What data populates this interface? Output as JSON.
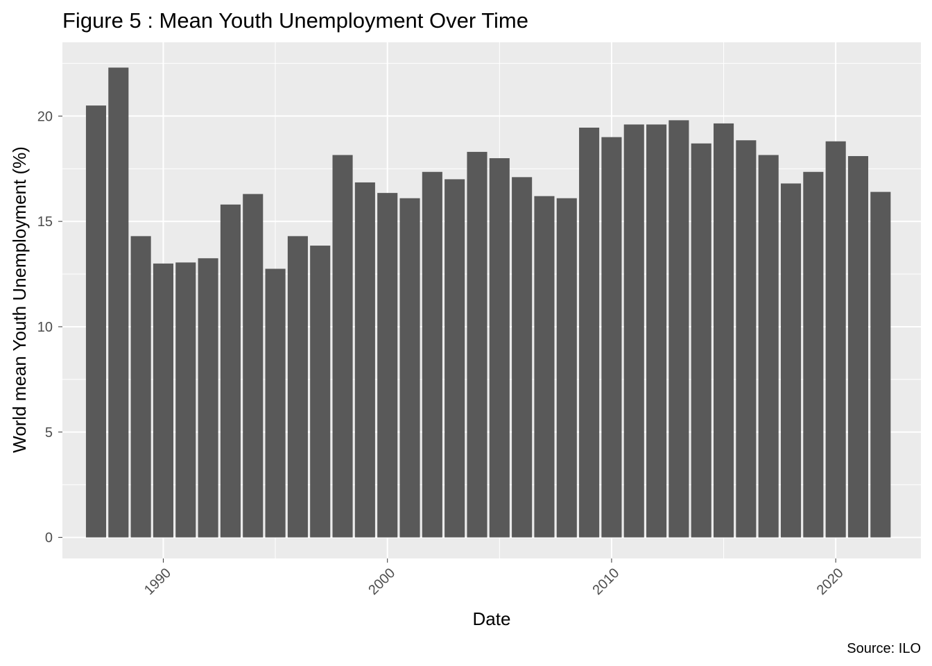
{
  "chart_data": {
    "type": "bar",
    "title": "Figure 5 : Mean Youth Unemployment Over Time",
    "xlabel": "Date",
    "ylabel": "World mean Youth Unemployment (%)",
    "caption": "Source: ILO",
    "x": [
      1987,
      1988,
      1989,
      1990,
      1991,
      1992,
      1993,
      1994,
      1995,
      1996,
      1997,
      1998,
      1999,
      2000,
      2001,
      2002,
      2003,
      2004,
      2005,
      2006,
      2007,
      2008,
      2009,
      2010,
      2011,
      2012,
      2013,
      2014,
      2015,
      2016,
      2017,
      2018,
      2019,
      2020,
      2021,
      2022
    ],
    "values": [
      20.5,
      22.3,
      14.3,
      13.0,
      13.05,
      13.25,
      15.8,
      16.3,
      12.75,
      14.3,
      13.85,
      18.15,
      16.85,
      16.35,
      16.1,
      17.35,
      17.0,
      18.3,
      18.0,
      17.1,
      16.2,
      16.1,
      19.45,
      19.0,
      19.6,
      19.6,
      19.8,
      18.7,
      19.65,
      18.85,
      18.15,
      16.8,
      17.35,
      18.8,
      18.1,
      16.4
    ],
    "xlim": [
      1985.5,
      2023.8
    ],
    "ylim": [
      -1.0,
      23.5
    ],
    "x_ticks": [
      1990,
      2000,
      2010,
      2020
    ],
    "x_tick_labels": [
      "1990",
      "2000",
      "2010",
      "2020"
    ],
    "y_ticks": [
      0,
      5,
      10,
      15,
      20
    ],
    "y_tick_labels": [
      "0",
      "5",
      "10",
      "15",
      "20"
    ],
    "grid": true,
    "legend": "none",
    "colors": {
      "bar": "#595959",
      "panel": "#ebebeb",
      "grid": "#ffffff",
      "tick_text": "#4d4d4d",
      "text": "#000000"
    }
  }
}
